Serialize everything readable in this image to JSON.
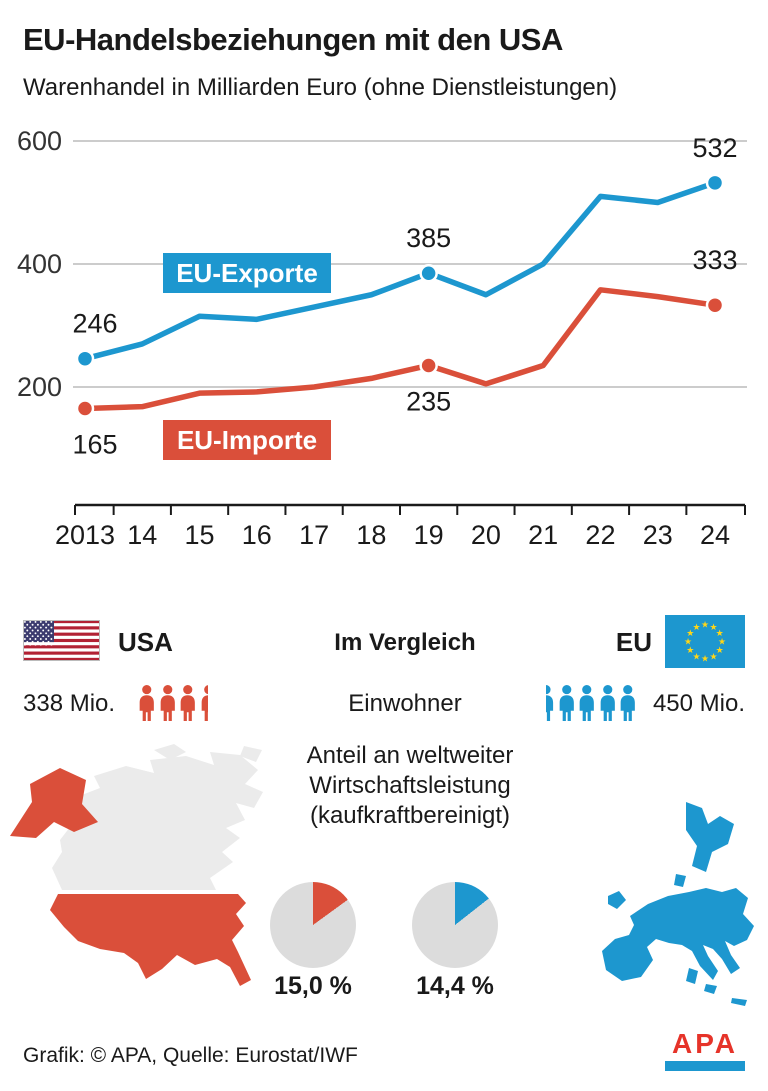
{
  "header": {
    "title": "EU-Handelsbeziehungen mit den USA",
    "subtitle": "Warenhandel in Milliarden Euro (ohne Dienstleistungen)"
  },
  "chart_data": [
    {
      "type": "line",
      "title": "Warenhandel in Milliarden Euro (ohne Dienstleistungen)",
      "categories": [
        "2013",
        "14",
        "15",
        "16",
        "17",
        "18",
        "19",
        "20",
        "21",
        "22",
        "23",
        "24"
      ],
      "yticks": [
        200,
        400,
        600
      ],
      "ylim": [
        100,
        620
      ],
      "grid": true,
      "legend_position": "inline-boxes",
      "series": [
        {
          "name": "EU-Exporte",
          "color": "#1d97cf",
          "values": [
            246,
            270,
            315,
            310,
            330,
            350,
            385,
            350,
            400,
            510,
            500,
            532
          ],
          "labeled_points": [
            {
              "index": 0,
              "label": "246",
              "value": 246,
              "position": "above",
              "dx": 10
            },
            {
              "index": 6,
              "label": "385",
              "value": 385,
              "position": "above",
              "dx": 0
            },
            {
              "index": 11,
              "label": "532",
              "value": 532,
              "position": "above",
              "dx": 0
            }
          ]
        },
        {
          "name": "EU-Importe",
          "color": "#da4f3a",
          "values": [
            165,
            168,
            190,
            192,
            200,
            214,
            235,
            205,
            235,
            358,
            347,
            333
          ],
          "labeled_points": [
            {
              "index": 0,
              "label": "165",
              "value": 165,
              "position": "below",
              "dx": 10
            },
            {
              "index": 6,
              "label": "235",
              "value": 235,
              "position": "below",
              "dx": 0
            },
            {
              "index": 11,
              "label": "333",
              "value": 333,
              "position": "above",
              "dx": 0,
              "dy": -10
            }
          ]
        }
      ]
    },
    {
      "type": "pie",
      "name": "usa-gdp-share",
      "title": "Anteil an weltweiter Wirtschaftsleistung (kaufkraftbereinigt)",
      "label": "15,0 %",
      "percent": 15.0,
      "color": "#da4f3a",
      "rest_color": "#dcdcdc"
    },
    {
      "type": "pie",
      "name": "eu-gdp-share",
      "title": "Anteil an weltweiter Wirtschaftsleistung (kaufkraftbereinigt)",
      "label": "14,4 %",
      "percent": 14.4,
      "color": "#1d97cf",
      "rest_color": "#dcdcdc"
    }
  ],
  "comparison": {
    "heading": "Im Vergleich",
    "row_label": "Einwohner",
    "usa": {
      "label": "USA",
      "population": "338 Mio.",
      "icons": [
        "full",
        "full",
        "full",
        "half-right"
      ]
    },
    "eu": {
      "label": "EU",
      "population": "450 Mio.",
      "icons": [
        "half-left",
        "full",
        "full",
        "full",
        "full"
      ]
    },
    "gdp_share": {
      "caption_lines": [
        "Anteil an weltweiter",
        "Wirtschaftsleistung",
        "(kaufkraftbereinigt)"
      ]
    }
  },
  "footer": {
    "credit": "Grafik: © APA, Quelle: Eurostat/IWF",
    "logo_text": "APA"
  },
  "colors": {
    "blue": "#1d97cf",
    "red": "#da4f3a",
    "map_gray": "#ebebeb",
    "pie_gray": "#dcdcdc",
    "grid": "#cccccc",
    "axis": "#1a1a1a",
    "star_yellow": "#ffd617",
    "flag_red": "#b22234",
    "flag_navy": "#3c3b6e",
    "apa_red": "#e63329",
    "text": "#1a1a1a"
  }
}
